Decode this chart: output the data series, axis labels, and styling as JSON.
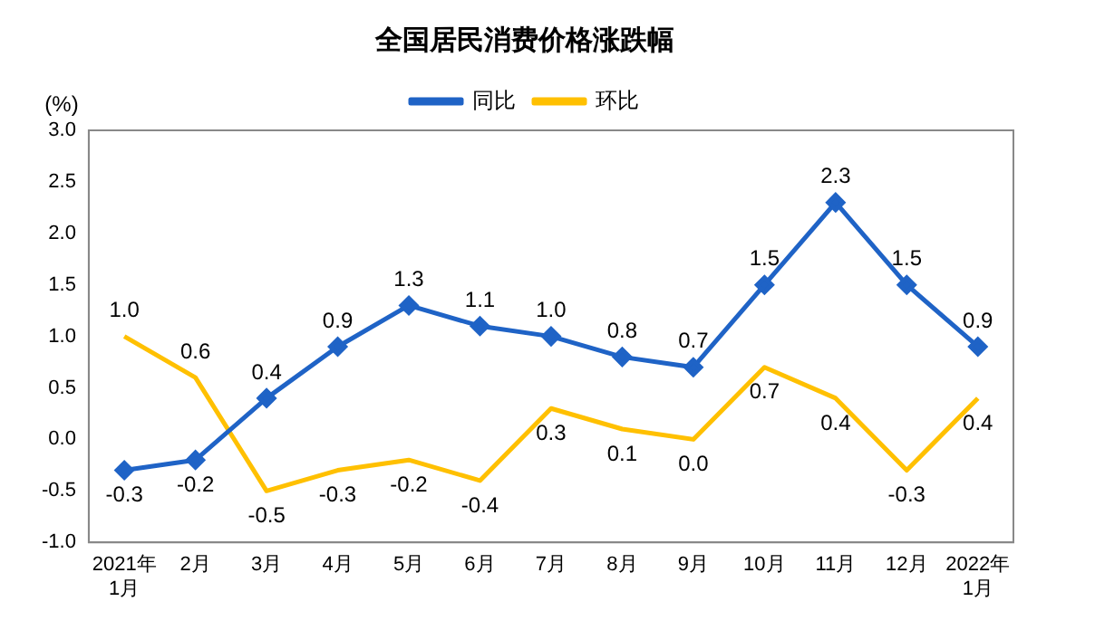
{
  "chart_data": {
    "type": "line",
    "title": "全国居民消费价格涨跌幅",
    "ylabel": "(%)",
    "categories": [
      "2021年\n1月",
      "2月",
      "3月",
      "4月",
      "5月",
      "6月",
      "7月",
      "8月",
      "9月",
      "10月",
      "11月",
      "12月",
      "2022年\n1月"
    ],
    "series": [
      {
        "name": "同比",
        "color": "#1f63c6",
        "marker": "diamond",
        "values": [
          -0.3,
          -0.2,
          0.4,
          0.9,
          1.3,
          1.1,
          1.0,
          0.8,
          0.7,
          1.5,
          2.3,
          1.5,
          0.9
        ],
        "value_labels": [
          "-0.3",
          "-0.2",
          "0.4",
          "0.9",
          "1.3",
          "1.1",
          "1.0",
          "0.8",
          "0.7",
          "1.5",
          "2.3",
          "1.5",
          "0.9"
        ]
      },
      {
        "name": "环比",
        "color": "#ffc000",
        "marker": "none",
        "values": [
          1.0,
          0.6,
          -0.5,
          -0.3,
          -0.2,
          -0.4,
          0.3,
          0.1,
          0.0,
          0.7,
          0.4,
          -0.3,
          0.4
        ],
        "value_labels": [
          "1.0",
          "0.6",
          "-0.5",
          "-0.3",
          "-0.2",
          "-0.4",
          "0.3",
          "0.1",
          "0.0",
          "0.7",
          "0.4",
          "-0.3",
          "0.4"
        ]
      }
    ],
    "ylim": [
      -1.0,
      3.0
    ],
    "yticks": [
      {
        "value": -1,
        "label": "-1.0"
      },
      {
        "value": -0.5,
        "label": "-0.5"
      },
      {
        "value": 0,
        "label": "0.0"
      },
      {
        "value": 0.5,
        "label": "0.5"
      },
      {
        "value": 1,
        "label": "1.0"
      },
      {
        "value": 1.5,
        "label": "1.5"
      },
      {
        "value": 2,
        "label": "2.0"
      },
      {
        "value": 2.5,
        "label": "2.5"
      },
      {
        "value": 3,
        "label": "3.0"
      }
    ],
    "grid": false,
    "legend": "top"
  }
}
